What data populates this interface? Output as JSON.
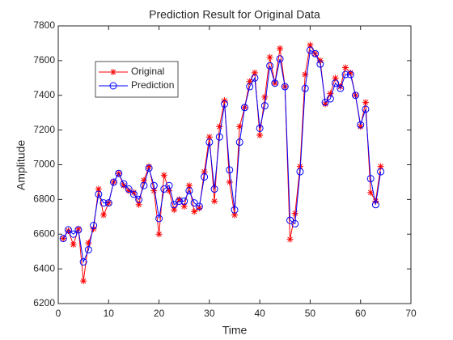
{
  "chart_data": {
    "type": "line",
    "title": "Prediction Result for Original Data",
    "xlabel": "Time",
    "ylabel": "Amplitude",
    "x": [
      1,
      2,
      3,
      4,
      5,
      6,
      7,
      8,
      9,
      10,
      11,
      12,
      13,
      14,
      15,
      16,
      17,
      18,
      19,
      20,
      21,
      22,
      23,
      24,
      25,
      26,
      27,
      28,
      29,
      30,
      31,
      32,
      33,
      34,
      35,
      36,
      37,
      38,
      39,
      40,
      41,
      42,
      43,
      44,
      45,
      46,
      47,
      48,
      49,
      50,
      51,
      52,
      53,
      54,
      55,
      56,
      57,
      58,
      59,
      60,
      61,
      62,
      63,
      64
    ],
    "series": [
      {
        "name": "Original",
        "color": "#ff0000",
        "marker": "*",
        "values": [
          6575,
          6620,
          6540,
          6630,
          6330,
          6550,
          6630,
          6860,
          6710,
          6780,
          6900,
          6950,
          6880,
          6850,
          6840,
          6770,
          6910,
          6990,
          6850,
          6600,
          6940,
          6850,
          6740,
          6800,
          6760,
          6880,
          6730,
          6750,
          6960,
          7160,
          6790,
          7220,
          7370,
          6900,
          6710,
          7220,
          7330,
          7480,
          7530,
          7170,
          7390,
          7620,
          7470,
          7670,
          7450,
          6570,
          6720,
          6990,
          7520,
          7690,
          7640,
          7600,
          7350,
          7410,
          7500,
          7450,
          7560,
          7530,
          7400,
          7220,
          7360,
          6840,
          6790,
          6990
        ]
      },
      {
        "name": "Prediction",
        "color": "#0000ff",
        "marker": "o",
        "values": [
          6575,
          6625,
          6600,
          6625,
          6440,
          6510,
          6650,
          6830,
          6780,
          6780,
          6900,
          6950,
          6890,
          6860,
          6830,
          6800,
          6880,
          6980,
          6880,
          6690,
          6860,
          6880,
          6770,
          6790,
          6790,
          6850,
          6780,
          6760,
          6930,
          7130,
          6860,
          7160,
          7350,
          6970,
          6740,
          7130,
          7330,
          7450,
          7500,
          7210,
          7340,
          7570,
          7470,
          7610,
          7450,
          6680,
          6660,
          6960,
          7440,
          7660,
          7640,
          7580,
          7360,
          7380,
          7470,
          7440,
          7520,
          7520,
          7400,
          7230,
          7320,
          6920,
          6770,
          6960
        ]
      }
    ],
    "xlim": [
      0,
      70
    ],
    "xticks": [
      0,
      10,
      20,
      30,
      40,
      50,
      60,
      70
    ],
    "ylim": [
      6200,
      7800
    ],
    "yticks": [
      6200,
      6400,
      6600,
      6800,
      7000,
      7200,
      7400,
      7600,
      7800
    ],
    "grid": false,
    "legend": "northwest"
  }
}
